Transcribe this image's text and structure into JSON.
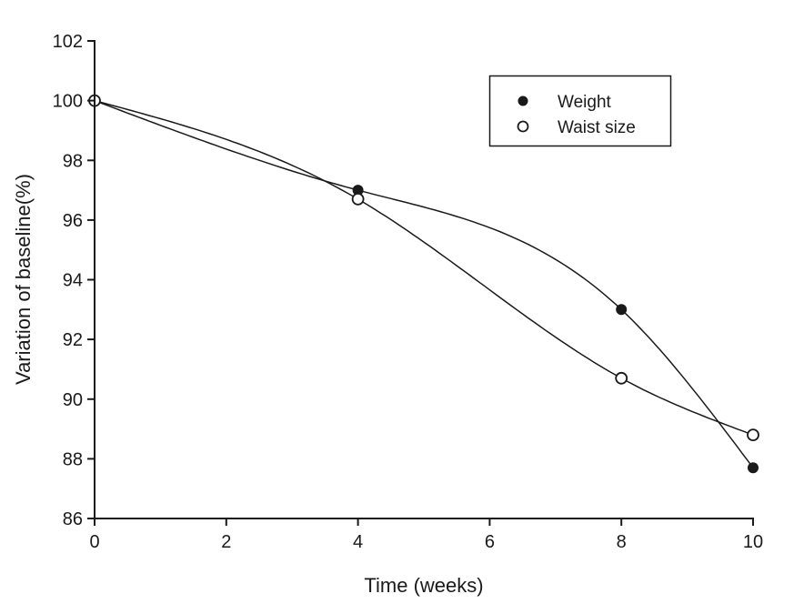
{
  "chart_data": {
    "type": "line",
    "title": "",
    "xlabel": "Time (weeks)",
    "ylabel": "Variation of baseline(%)",
    "x": [
      0,
      4,
      8,
      10
    ],
    "series": [
      {
        "name": "Weight",
        "marker": "filled-circle",
        "values": [
          100,
          97.0,
          93.0,
          87.7
        ]
      },
      {
        "name": "Waist size",
        "marker": "open-circle",
        "values": [
          100,
          96.7,
          90.7,
          88.8
        ]
      }
    ],
    "xlim": [
      0,
      10
    ],
    "ylim": [
      86,
      102
    ],
    "x_ticks": [
      0,
      2,
      4,
      6,
      8,
      10
    ],
    "y_ticks": [
      86,
      88,
      90,
      92,
      94,
      96,
      98,
      100,
      102
    ],
    "grid": false,
    "curve": "spline",
    "legend_position": "upper-right-inside",
    "colors": {
      "line": "#1a1a1a",
      "axis": "#1a1a1a",
      "marker_fill": "#1a1a1a",
      "marker_open_fill": "#ffffff",
      "background": "#ffffff"
    }
  }
}
